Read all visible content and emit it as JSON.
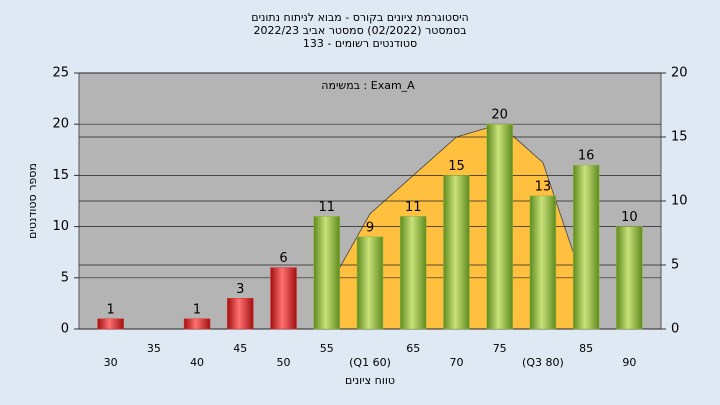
{
  "chart_data": {
    "type": "bar",
    "title": [
      "היסטוגרמת ציונים בקורס - מבוא לניתוח נתונים",
      "בסמסטר (02/2022) סמסטר אביב 2022/23",
      "סטודנטים רשומים - 133"
    ],
    "annotation": "במשימה : Exam_A",
    "xlabel": "טווח ציונים",
    "ylabel": "מספר סטודנטים",
    "categories": [
      "30",
      "35",
      "40",
      "45",
      "50",
      "55",
      "(Q1 60)",
      "65",
      "70",
      "75",
      "(Q3 80)",
      "85",
      "90"
    ],
    "series": [
      {
        "values": [
          1,
          null,
          1,
          3,
          6,
          11,
          9,
          11,
          15,
          20,
          13,
          16,
          10
        ],
        "colors": [
          "#e03030",
          "#e03030",
          "#e03030",
          "#e03030",
          "#e03030",
          "#8fb83a",
          "#8fb83a",
          "#8fb83a",
          "#8fb83a",
          "#8fb83a",
          "#8fb83a",
          "#8fb83a",
          "#8fb83a"
        ]
      },
      {
        "type": "area",
        "axis": "y2",
        "color": "#ffc040",
        "values": [
          null,
          null,
          null,
          null,
          null,
          3,
          9,
          12,
          15,
          16,
          13,
          3,
          null
        ]
      }
    ],
    "ylim": [
      0,
      25
    ],
    "yticks": [
      0,
      5,
      10,
      15,
      20,
      25
    ],
    "y2lim": [
      0,
      20
    ],
    "y2ticks": [
      0,
      5,
      10,
      15,
      20
    ],
    "grid": true
  }
}
